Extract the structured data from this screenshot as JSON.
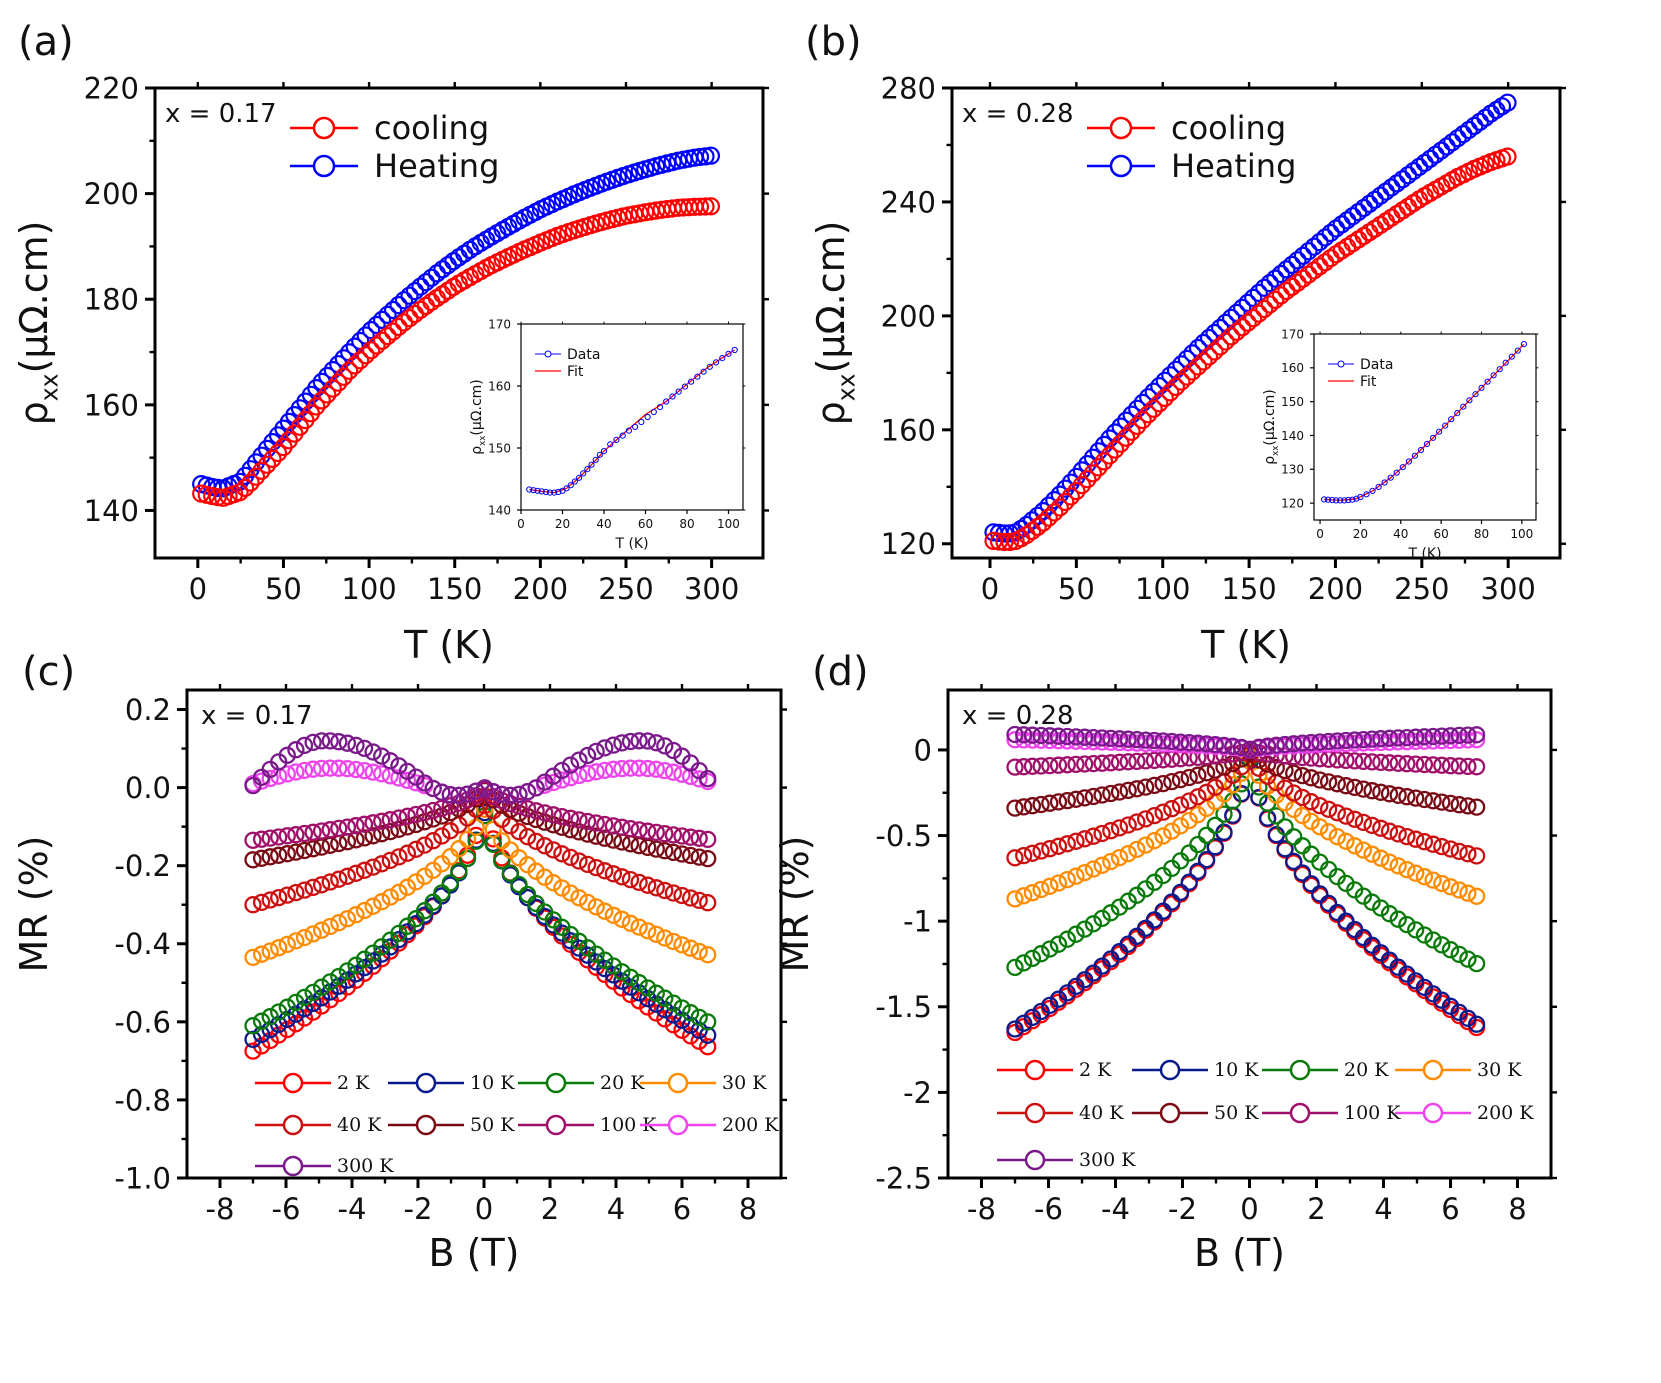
{
  "chart_data": [
    {
      "panel": "(a)",
      "type": "scatter",
      "annotation": "x = 0.17",
      "xlabel": "T (K)",
      "ylabel_main": "ρ",
      "ylabel_sub": "xx",
      "ylabel_tail": "(μΩ.cm)",
      "xlim": [
        -25,
        330
      ],
      "ylim": [
        131,
        220
      ],
      "xticks": [
        0,
        50,
        100,
        150,
        200,
        250,
        300
      ],
      "yticks": [
        140,
        160,
        180,
        200,
        220
      ],
      "legend_position": "top-left",
      "series": [
        {
          "name": "cooling",
          "color": "#ff0000",
          "x": [
            2,
            10,
            15,
            25,
            30,
            40,
            50,
            60,
            70,
            80,
            90,
            100,
            110,
            120,
            130,
            140,
            150,
            160,
            170,
            180,
            190,
            200,
            210,
            220,
            230,
            240,
            250,
            260,
            270,
            280,
            290,
            300
          ],
          "y": [
            143.2,
            142.6,
            142.4,
            143.5,
            145,
            148.5,
            152,
            156,
            160,
            163.5,
            167,
            170,
            172.8,
            175.5,
            178,
            180.3,
            182.5,
            184.4,
            186.2,
            187.8,
            189.3,
            190.7,
            192,
            193.1,
            194.1,
            195,
            195.8,
            196.4,
            196.9,
            197.3,
            197.5,
            197.6
          ]
        },
        {
          "name": "Heating",
          "color": "#0000ff",
          "x": [
            2,
            10,
            15,
            25,
            30,
            40,
            50,
            60,
            70,
            80,
            90,
            100,
            110,
            120,
            130,
            140,
            150,
            160,
            170,
            180,
            190,
            200,
            210,
            220,
            230,
            240,
            250,
            260,
            270,
            280,
            290,
            300
          ],
          "y": [
            145,
            144.3,
            144.2,
            145.5,
            147.5,
            151.5,
            155.5,
            159.5,
            163.5,
            167,
            170.5,
            173.8,
            176.8,
            179.7,
            182.4,
            185,
            187.4,
            189.6,
            191.6,
            193.5,
            195.3,
            197,
            198.5,
            199.9,
            201.2,
            202.4,
            203.5,
            204.5,
            205.4,
            206.2,
            206.8,
            207.2
          ]
        }
      ],
      "inset": {
        "xlabel": "T (K)",
        "ylabel_main": "ρ",
        "ylabel_sub": "xx",
        "ylabel_tail": "(μΩ.cm)",
        "xlim": [
          0,
          107
        ],
        "ylim": [
          140,
          170
        ],
        "xticks": [
          0,
          20,
          40,
          60,
          80,
          100
        ],
        "yticks": [
          140,
          150,
          160,
          170
        ],
        "series": [
          {
            "name": "Data",
            "color": "#0000ff",
            "x": [
              4,
              6,
              8,
              10,
              12,
              14,
              16,
              18,
              20,
              22,
              24,
              26,
              28,
              30,
              32,
              34,
              36,
              38,
              40,
              43,
              46,
              49,
              52,
              55,
              58,
              61,
              64,
              67,
              70,
              73,
              76,
              79,
              82,
              85,
              88,
              91,
              94,
              97,
              100,
              103
            ],
            "y": [
              143.3,
              143.2,
              143.1,
              143.0,
              142.9,
              142.8,
              142.8,
              142.9,
              143.1,
              143.5,
              144.0,
              144.6,
              145.2,
              145.9,
              146.6,
              147.3,
              148.1,
              148.9,
              149.5,
              150.6,
              151.3,
              152.0,
              152.8,
              153.4,
              154.2,
              155.0,
              155.8,
              156.6,
              157.5,
              158.3,
              159.1,
              159.9,
              160.7,
              161.5,
              162.3,
              163.1,
              163.8,
              164.5,
              165.2,
              165.8
            ]
          },
          {
            "name": "Fit",
            "color": "#ff0000",
            "x": [
              4,
              10,
              16,
              22,
              28,
              34,
              40,
              50,
              60,
              70,
              80,
              90,
              100,
              103
            ],
            "y": [
              143.3,
              143.0,
              142.8,
              143.5,
              145.2,
              147.3,
              149.5,
              152.5,
              155.4,
              157.5,
              160.3,
              163.0,
              165.2,
              165.8
            ]
          }
        ]
      }
    },
    {
      "panel": "(b)",
      "type": "scatter",
      "annotation": "x = 0.28",
      "xlabel": "T (K)",
      "ylabel_main": "ρ",
      "ylabel_sub": "xx",
      "ylabel_tail": "(μΩ.cm)",
      "xlim": [
        -22,
        330
      ],
      "ylim": [
        115,
        280
      ],
      "xticks": [
        0,
        50,
        100,
        150,
        200,
        250,
        300
      ],
      "yticks": [
        120,
        160,
        200,
        240,
        280
      ],
      "legend_position": "top-left",
      "series": [
        {
          "name": "cooling",
          "color": "#ff0000",
          "x": [
            2,
            10,
            15,
            20,
            30,
            40,
            50,
            60,
            70,
            80,
            90,
            100,
            110,
            120,
            130,
            140,
            150,
            160,
            170,
            180,
            190,
            200,
            210,
            220,
            230,
            240,
            250,
            260,
            270,
            280,
            290,
            300
          ],
          "y": [
            121,
            120.5,
            121,
            122.5,
            127,
            132.5,
            138.5,
            145,
            151.5,
            158,
            164.5,
            170.5,
            176.5,
            182,
            187.5,
            193,
            198,
            203,
            208,
            212.5,
            217,
            221.5,
            225.5,
            229.5,
            233.5,
            237.5,
            241.5,
            245,
            248.5,
            251.5,
            254,
            256
          ]
        },
        {
          "name": "Heating",
          "color": "#0000ff",
          "x": [
            2,
            10,
            15,
            20,
            30,
            40,
            50,
            60,
            70,
            80,
            90,
            100,
            110,
            120,
            130,
            140,
            150,
            160,
            170,
            180,
            190,
            200,
            210,
            220,
            230,
            240,
            250,
            260,
            270,
            280,
            290,
            300
          ],
          "y": [
            124,
            123.5,
            124,
            126,
            131,
            137,
            143.5,
            150.5,
            157.5,
            164,
            170.5,
            176.5,
            182.5,
            188.5,
            194,
            199.5,
            205,
            210.5,
            215.5,
            220.5,
            225.5,
            230.5,
            235,
            239.5,
            244,
            248.5,
            253,
            257.5,
            262,
            266.5,
            271,
            275
          ]
        }
      ],
      "inset": {
        "xlabel": "T (K)",
        "ylabel_main": "ρ",
        "ylabel_sub": "xx",
        "ylabel_tail": "(μΩ.cm)",
        "xlim": [
          -3,
          107
        ],
        "ylim": [
          115,
          170
        ],
        "xticks": [
          0,
          20,
          40,
          60,
          80,
          100
        ],
        "yticks": [
          120,
          130,
          140,
          150,
          160,
          170
        ],
        "series": [
          {
            "name": "Data",
            "color": "#0000ff",
            "x": [
              2,
              4,
              6,
              8,
              10,
              12,
              14,
              16,
              18,
              20,
              23,
              26,
              29,
              32,
              35,
              38,
              41,
              44,
              47,
              50,
              53,
              56,
              59,
              62,
              65,
              68,
              71,
              74,
              77,
              80,
              83,
              86,
              89,
              92,
              95,
              98,
              101
            ],
            "y": [
              121.1,
              121.0,
              120.9,
              120.8,
              120.8,
              120.8,
              120.9,
              121.0,
              121.3,
              121.8,
              122.6,
              123.6,
              124.8,
              126.1,
              127.5,
              129.0,
              130.6,
              132.3,
              134.0,
              135.7,
              137.5,
              139.3,
              141.1,
              142.9,
              144.8,
              146.6,
              148.5,
              150.4,
              152.2,
              154.1,
              155.9,
              157.8,
              159.6,
              161.5,
              163.3,
              165.1,
              167.0
            ]
          },
          {
            "name": "Fit",
            "color": "#ff0000",
            "x": [
              2,
              10,
              18,
              26,
              35,
              44,
              53,
              62,
              71,
              80,
              89,
              98,
              101
            ],
            "y": [
              121.1,
              120.8,
              121.3,
              123.6,
              127.5,
              132.3,
              137.5,
              142.9,
              148.5,
              154.1,
              159.6,
              165.1,
              167.0
            ]
          }
        ]
      }
    },
    {
      "panel": "(c)",
      "type": "scatter",
      "annotation": "x = 0.17",
      "xlabel": "B (T)",
      "ylabel": "MR (%)",
      "xlim": [
        -9,
        9
      ],
      "ylim": [
        -1.0,
        0.25
      ],
      "xticks": [
        -8,
        -6,
        -4,
        -2,
        0,
        2,
        4,
        6,
        8
      ],
      "yticks": [
        -1.0,
        -0.8,
        -0.6,
        -0.4,
        -0.2,
        0.0,
        0.2
      ],
      "ytick_labels": [
        "-1.0",
        "-0.8",
        "-0.6",
        "-0.4",
        "-0.2",
        "0.0",
        "0.2"
      ],
      "legend_position": "bottom",
      "curve_note": "MR is symmetric in B; end value at |B| = 7 T, max value and position for non-monotonic curves",
      "series": [
        {
          "name": "2 K",
          "color": "#ff0000",
          "end_value": -0.675,
          "zero_value": -0.02
        },
        {
          "name": "10 K",
          "color": "#0a1a8c",
          "end_value": -0.645,
          "zero_value": -0.04
        },
        {
          "name": "20 K",
          "color": "#0a7a0a",
          "end_value": -0.61,
          "zero_value": -0.05
        },
        {
          "name": "30 K",
          "color": "#ff8c00",
          "end_value": -0.435,
          "zero_value": -0.04
        },
        {
          "name": "40 K",
          "color": "#cc1010",
          "end_value": -0.3,
          "zero_value": -0.01
        },
        {
          "name": "50 K",
          "color": "#7a0a14",
          "end_value": -0.185,
          "zero_value": 0.0
        },
        {
          "name": "100 K",
          "color": "#a0106a",
          "end_value": -0.135,
          "zero_value": 0.0
        },
        {
          "name": "200 K",
          "color": "#ee44ee",
          "end_value": 0.01,
          "zero_value": 0.0,
          "peak_value": 0.05,
          "peak_B": 4.6
        },
        {
          "name": "300 K",
          "color": "#7a1a8a",
          "end_value": 0.005,
          "zero_value": 0.0,
          "peak_value": 0.12,
          "peak_B": 4.8
        }
      ]
    },
    {
      "panel": "(d)",
      "type": "scatter",
      "annotation": "x = 0.28",
      "xlabel": "B (T)",
      "ylabel": "MR (%)",
      "xlim": [
        -9,
        9
      ],
      "ylim": [
        -2.5,
        0.35
      ],
      "xticks": [
        -8,
        -6,
        -4,
        -2,
        0,
        2,
        4,
        6,
        8
      ],
      "yticks": [
        -2.5,
        -2,
        -1.5,
        -1,
        -0.5,
        0
      ],
      "ytick_labels": [
        "-2.5",
        "-2",
        "-1.5",
        "-1",
        "-0.5",
        "0"
      ],
      "legend_position": "bottom",
      "curve_note": "MR is symmetric in B; end value at |B| = 7 T",
      "series": [
        {
          "name": "2 K",
          "color": "#ff0000",
          "end_value": -1.65
        },
        {
          "name": "10 K",
          "color": "#0a1a8c",
          "end_value": -1.63
        },
        {
          "name": "20 K",
          "color": "#0a7a0a",
          "end_value": -1.27
        },
        {
          "name": "30 K",
          "color": "#ff8c00",
          "end_value": -0.87
        },
        {
          "name": "40 K",
          "color": "#cc1010",
          "end_value": -0.63
        },
        {
          "name": "50 K",
          "color": "#7a0a14",
          "end_value": -0.34
        },
        {
          "name": "100 K",
          "color": "#a0106a",
          "end_value": -0.1
        },
        {
          "name": "200 K",
          "color": "#ee44ee",
          "end_value": 0.06
        },
        {
          "name": "300 K",
          "color": "#7a1a8a",
          "end_value": 0.09
        }
      ]
    }
  ]
}
